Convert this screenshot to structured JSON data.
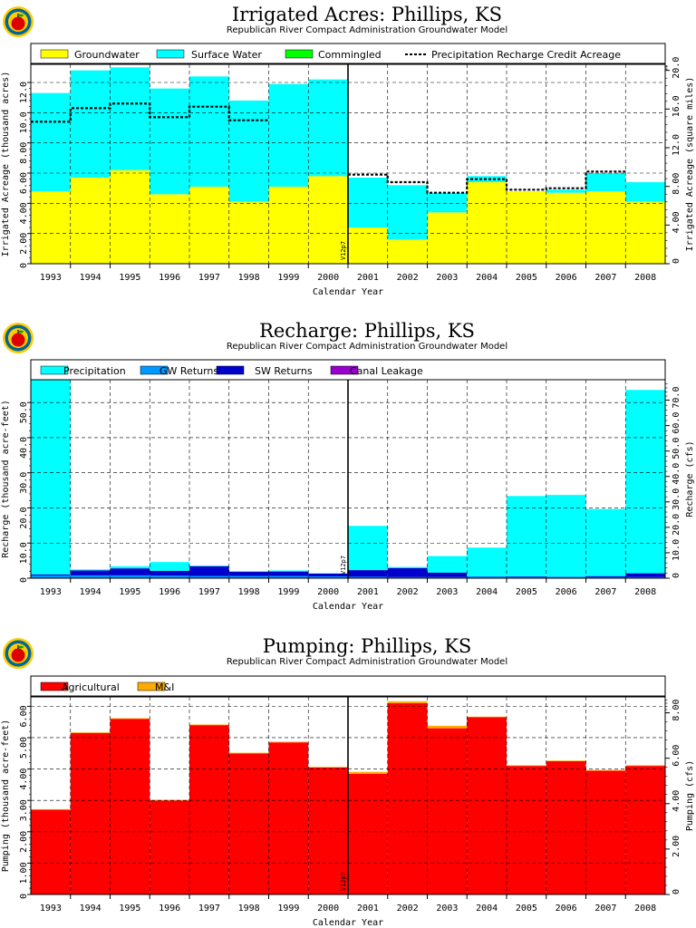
{
  "colors": {
    "groundwater": "#ffff00",
    "surface_water": "#00ffff",
    "commingled": "#00ff00",
    "precipitation": "#00ffff",
    "gw_returns": "#0099ff",
    "sw_returns": "#0000cc",
    "canal_leakage": "#9900cc",
    "agricultural": "#ff0000",
    "mi": "#ffaa00"
  },
  "chart_data": [
    {
      "type": "area",
      "title": "Irrigated Acres: Phillips, KS",
      "subtitle": "Republican River Compact Administration Groundwater Model",
      "xlabel": "Calendar Year",
      "ylabel": "Irrigated Acreage (thousand acres)",
      "ylabel_right": "Irrigated Acreage (square miles)",
      "categories": [
        "1993",
        "1994",
        "1995",
        "1996",
        "1997",
        "1998",
        "1999",
        "2000",
        "2001",
        "2002",
        "2003",
        "2004",
        "2005",
        "2006",
        "2007",
        "2008"
      ],
      "ylim": [
        0,
        13.2
      ],
      "yticks": [
        "0",
        "2.00",
        "4.00",
        "6.00",
        "8.00",
        "10.0",
        "12.0"
      ],
      "y2lim": [
        0,
        20.625
      ],
      "y2ticks": [
        "0",
        "4.00",
        "8.00",
        "12.0",
        "16.0",
        "20.0"
      ],
      "marker_label": "V12p7",
      "grid": true,
      "legend": "top",
      "series": [
        {
          "name": "Groundwater",
          "color_key": "groundwater",
          "values": [
            4.8,
            5.7,
            6.2,
            4.6,
            5.1,
            4.1,
            5.1,
            5.8,
            2.4,
            1.6,
            3.4,
            5.4,
            4.8,
            4.7,
            4.8,
            4.1
          ]
        },
        {
          "name": "Surface Water",
          "color_key": "surface_water",
          "values": [
            6.5,
            7.1,
            6.8,
            7.0,
            7.3,
            6.7,
            6.8,
            6.4,
            3.3,
            3.6,
            1.3,
            0.4,
            0.0,
            0.2,
            1.2,
            1.3
          ]
        },
        {
          "name": "Commingled",
          "color_key": "commingled",
          "values": [
            0,
            0,
            0,
            0,
            0,
            0,
            0,
            0,
            0,
            0,
            0,
            0,
            0,
            0,
            0,
            0
          ]
        }
      ],
      "line_series": [
        {
          "name": "Precipitation Recharge Credit Acreage",
          "values": [
            9.4,
            10.3,
            10.6,
            9.7,
            10.4,
            9.5,
            null,
            null,
            5.9,
            5.4,
            4.7,
            5.6,
            4.9,
            5.0,
            6.1,
            null
          ]
        }
      ]
    },
    {
      "type": "area",
      "title": "Recharge: Phillips, KS",
      "subtitle": "Republican River Compact Administration Groundwater Model",
      "xlabel": "Calendar Year",
      "ylabel": "Recharge (thousand acre-feet)",
      "ylabel_right": "Recharge (cfs)",
      "categories": [
        "1993",
        "1994",
        "1995",
        "1996",
        "1997",
        "1998",
        "1999",
        "2000",
        "2001",
        "2002",
        "2003",
        "2004",
        "2005",
        "2006",
        "2007",
        "2008"
      ],
      "ylim": [
        0,
        56.5
      ],
      "yticks": [
        "0",
        "10.0",
        "20.0",
        "30.0",
        "40.0",
        "50.0"
      ],
      "y2lim": [
        0,
        78.04
      ],
      "y2ticks": [
        "0",
        "10.0",
        "20.0",
        "30.0",
        "40.0",
        "50.0",
        "60.0",
        "70.0"
      ],
      "marker_label": "V12p7",
      "grid": true,
      "legend": "top",
      "series": [
        {
          "name": "GW Returns",
          "color_key": "gw_returns",
          "values": [
            0.8,
            0.8,
            0.8,
            0.7,
            0.6,
            0.6,
            0.6,
            0.5,
            0.4,
            0.3,
            0.3,
            0.4,
            0.3,
            0.3,
            0.3,
            0.3
          ]
        },
        {
          "name": "SW Returns",
          "color_key": "sw_returns",
          "values": [
            0.3,
            1.4,
            2.0,
            1.4,
            2.8,
            1.2,
            1.3,
            0.8,
            1.9,
            2.6,
            1.3,
            0.1,
            0.2,
            0.1,
            0.3,
            1.1
          ]
        },
        {
          "name": "Canal Leakage",
          "color_key": "canal_leakage",
          "values": [
            0,
            0,
            0,
            0,
            0,
            0,
            0,
            0,
            0,
            0,
            0,
            0,
            0,
            0,
            0,
            0
          ]
        },
        {
          "name": "Precipitation",
          "color_key": "precipitation",
          "values": [
            55.3,
            0.3,
            0.6,
            2.5,
            0.2,
            0.2,
            0.3,
            0.1,
            12.6,
            0.3,
            4.7,
            8.2,
            22.9,
            23.3,
            19.1,
            52.2
          ]
        }
      ]
    },
    {
      "type": "area",
      "title": "Pumping: Phillips, KS",
      "subtitle": "Republican River Compact Administration Groundwater Model",
      "xlabel": "Calendar Year",
      "ylabel": "Pumping (thousand acre-feet)",
      "ylabel_right": "Pumping (cfs)",
      "categories": [
        "1993",
        "1994",
        "1995",
        "1996",
        "1997",
        "1998",
        "1999",
        "2000",
        "2001",
        "2002",
        "2003",
        "2004",
        "2005",
        "2006",
        "2007",
        "2008"
      ],
      "ylim": [
        0,
        6.3
      ],
      "yticks": [
        "0",
        "1.00",
        "2.00",
        "3.00",
        "4.00",
        "5.00",
        "6.00"
      ],
      "y2lim": [
        0,
        8.7
      ],
      "y2ticks": [
        "0",
        "2.00",
        "4.00",
        "6.00",
        "8.00"
      ],
      "marker_label": "V12p7",
      "grid": true,
      "legend": "top",
      "series": [
        {
          "name": "Agricultural",
          "color_key": "agricultural",
          "values": [
            2.7,
            5.15,
            5.6,
            3.0,
            5.4,
            4.5,
            4.85,
            4.05,
            3.85,
            6.1,
            5.3,
            5.65,
            4.1,
            4.25,
            3.95,
            4.1
          ]
        },
        {
          "name": "M&I",
          "color_key": "mi",
          "values": [
            0.02,
            0.02,
            0.02,
            0.02,
            0.02,
            0.02,
            0.02,
            0.02,
            0.06,
            0.06,
            0.08,
            0.02,
            0.02,
            0.02,
            0.02,
            0.02
          ]
        }
      ]
    }
  ]
}
